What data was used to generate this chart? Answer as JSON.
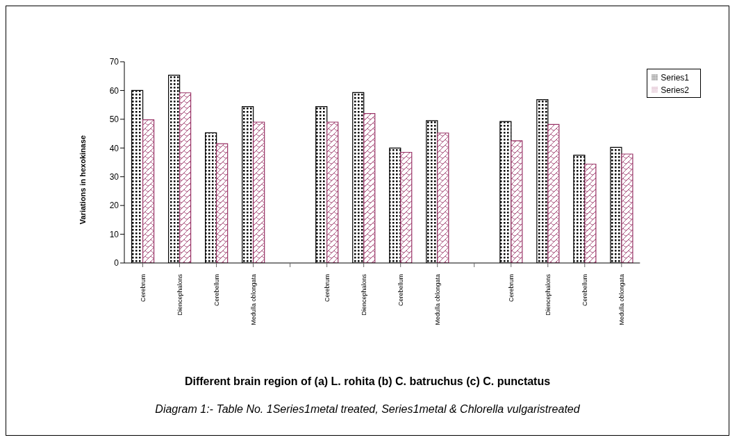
{
  "chart_data": {
    "type": "bar",
    "xlabel": "Different brain region of (a) L. rohita (b) C. batruchus (c) C. punctatus",
    "ylabel": "Variations in hexokinase",
    "categories": [
      "Cerebrum",
      "Diencephalons",
      "Cerebellum",
      "Medulla oblongata",
      null,
      "Cerebrum",
      "Diencephalons",
      "Cerebellum",
      "Medulla oblongata",
      null,
      "Cerebrum",
      "Diencephalons",
      "Cerebellum",
      "Medulla oblongata"
    ],
    "series": [
      {
        "name": "Series1",
        "color": "#000000",
        "values": [
          60,
          65.3,
          45.3,
          54.4,
          null,
          54.4,
          59.3,
          40,
          49.5,
          null,
          49.2,
          56.8,
          37.5,
          40.2
        ]
      },
      {
        "name": "Series2",
        "color": "#993366",
        "values": [
          49.8,
          59.2,
          41.5,
          49,
          null,
          49,
          52,
          38.5,
          45.2,
          null,
          42.5,
          48.2,
          34.4,
          37.9
        ]
      }
    ],
    "ylim": [
      0,
      70
    ],
    "yticks": [
      0,
      10,
      20,
      30,
      40,
      50,
      60,
      70
    ],
    "grid": false,
    "legend": "right",
    "annotations": [
      "Diagram 1:- Table No. 1Series1metal treated, Series1metal & Chlorella vulgaristreated"
    ]
  }
}
